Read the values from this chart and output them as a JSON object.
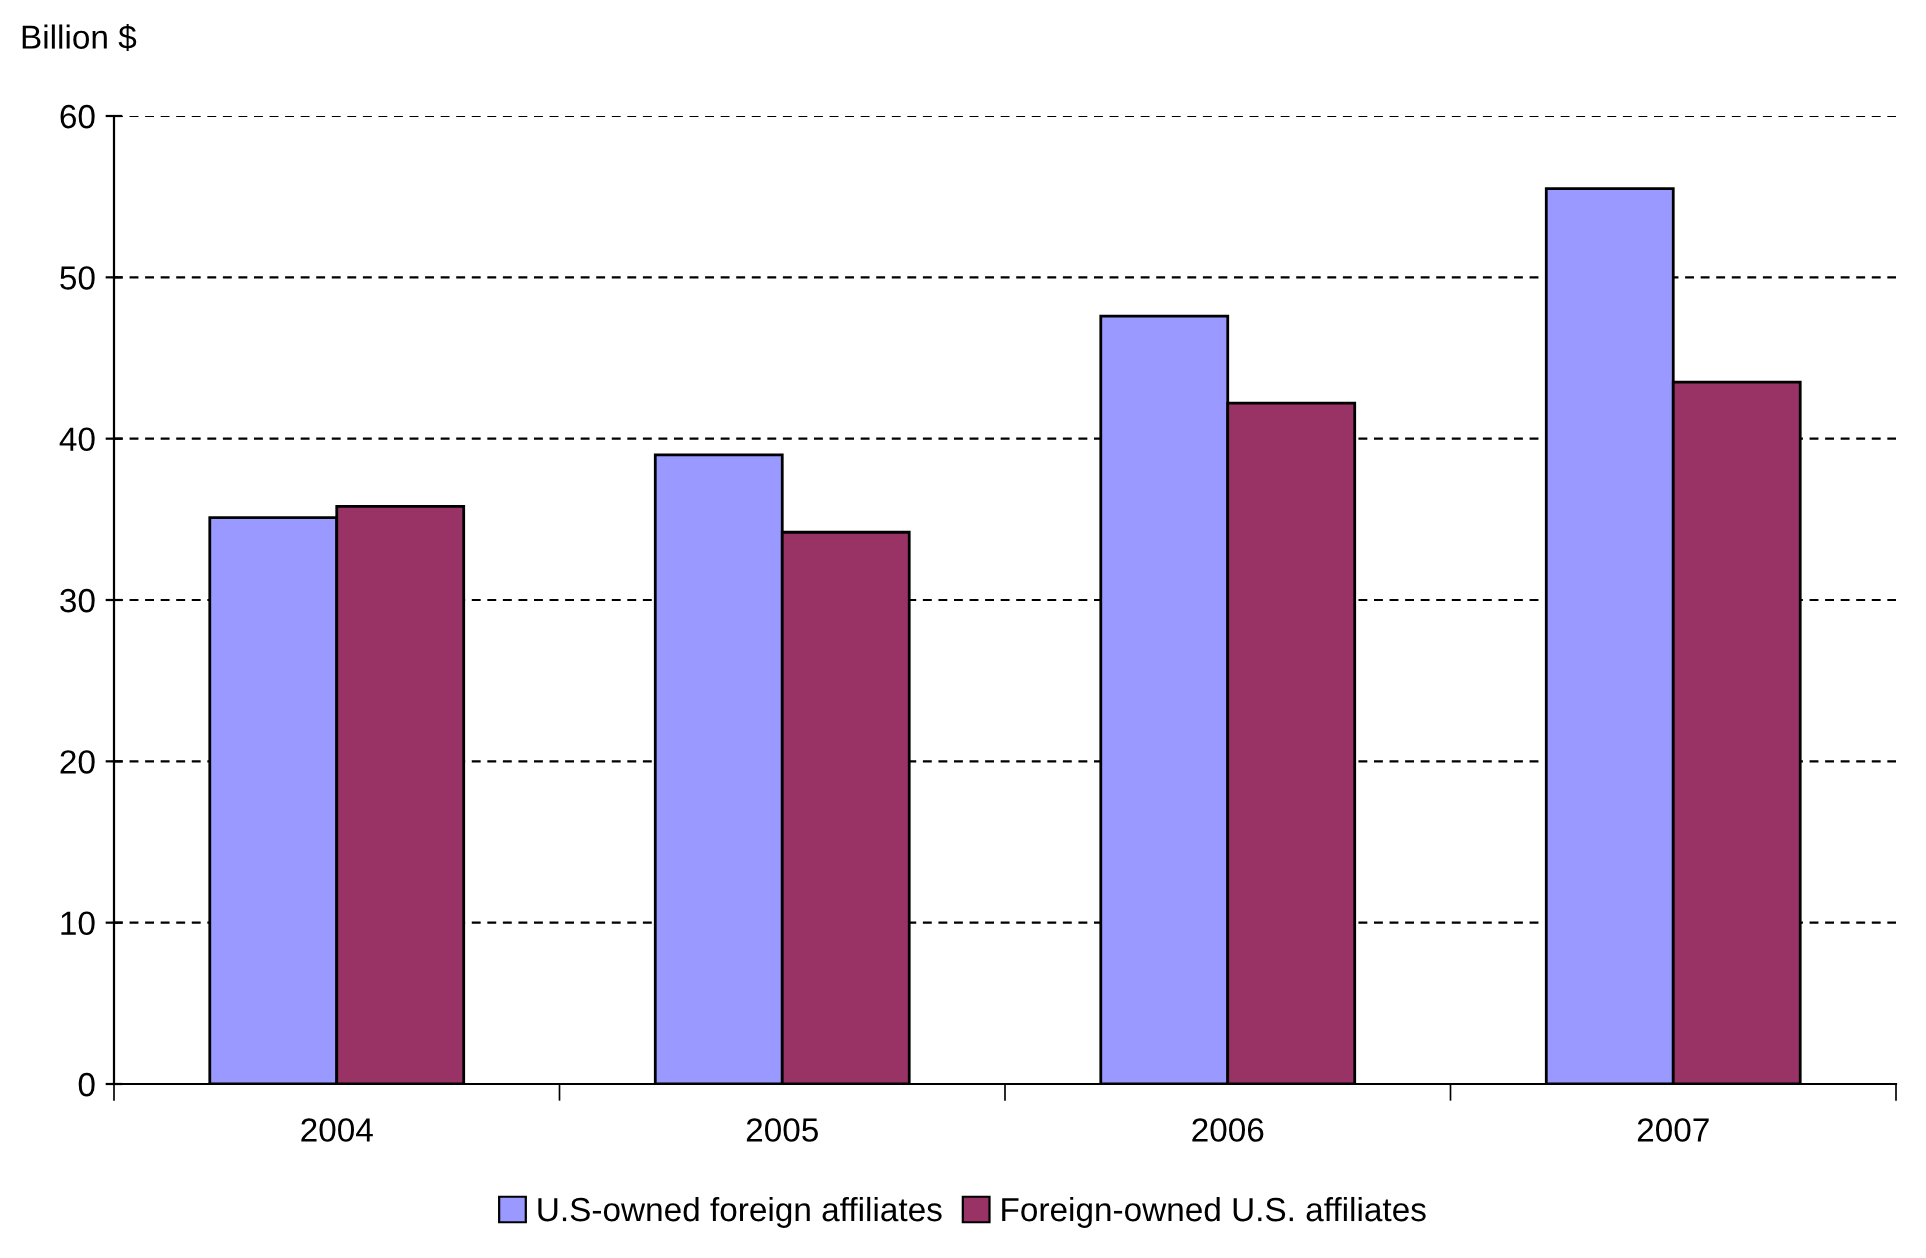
{
  "chart_data": {
    "type": "bar",
    "ylabel": "Billion $",
    "categories": [
      "2004",
      "2005",
      "2006",
      "2007"
    ],
    "series": [
      {
        "name": "U.S-owned foreign affiliates",
        "color": "#9999ff",
        "values": [
          35.1,
          39.0,
          47.6,
          55.5
        ]
      },
      {
        "name": "Foreign-owned U.S. affiliates",
        "color": "#993366",
        "values": [
          35.8,
          34.2,
          42.2,
          43.5
        ]
      }
    ],
    "ylim": [
      0,
      60
    ],
    "yticks": [
      0,
      10,
      20,
      30,
      40,
      50,
      60
    ],
    "grid": "y",
    "legend": "bottom"
  }
}
